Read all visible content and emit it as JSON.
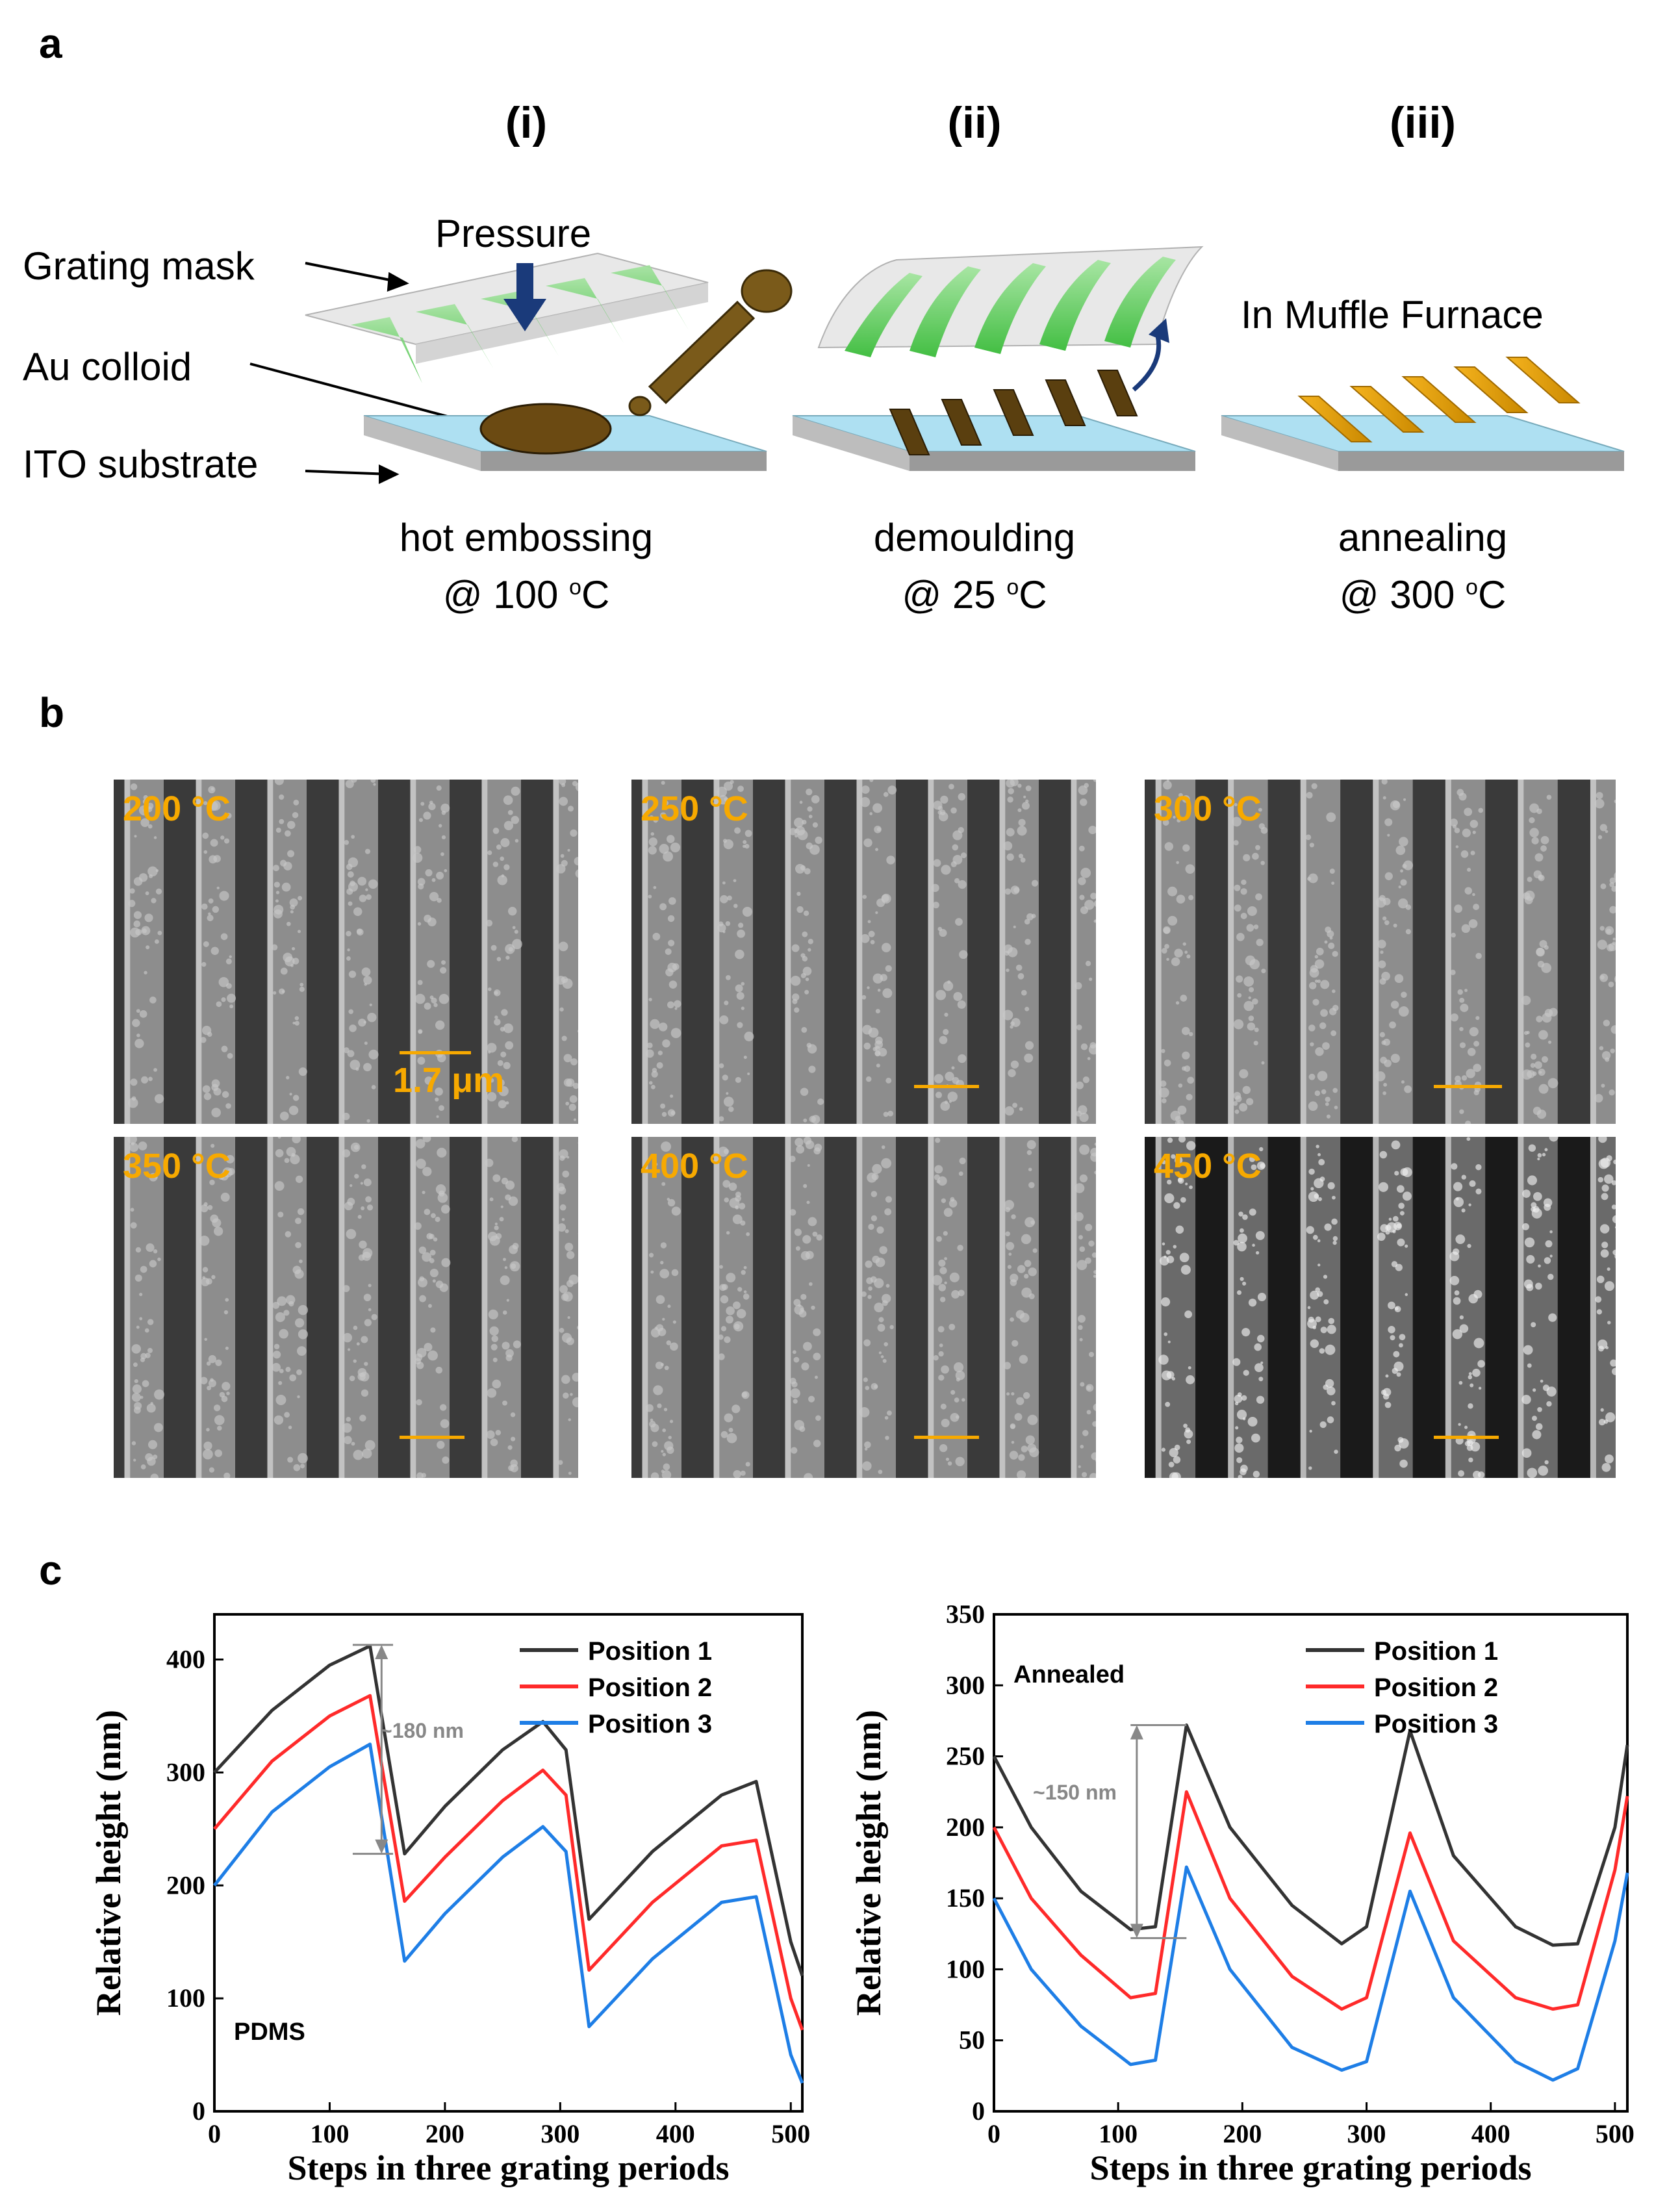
{
  "panels": {
    "a": {
      "letter": "a",
      "steps": [
        {
          "title": "(i)",
          "caption": "hot embossing",
          "temp": "@ 100",
          "unit_sup": "o",
          "unit": "C"
        },
        {
          "title": "(ii)",
          "caption": "demoulding",
          "temp": "@ 25",
          "unit_sup": "o",
          "unit": "C"
        },
        {
          "title": "(iii)",
          "caption": "annealing",
          "temp": "@ 300",
          "unit_sup": "o",
          "unit": "C"
        }
      ],
      "labels": {
        "grating_mask": "Grating mask",
        "au_colloid": "Au colloid",
        "ito_substrate": "ITO substrate",
        "pressure": "Pressure",
        "muffle": "In Muffle Furnace"
      }
    },
    "b": {
      "letter": "b",
      "images": [
        {
          "label": "200 °C"
        },
        {
          "label": "250 °C"
        },
        {
          "label": "300 °C"
        },
        {
          "label": "350 °C"
        },
        {
          "label": "400 °C"
        },
        {
          "label": "450 °C"
        }
      ],
      "scale_bar_text": "1.7 μm"
    },
    "c": {
      "letter": "c"
    }
  },
  "chart_data": [
    {
      "type": "line",
      "xlabel": "Steps in three grating periods",
      "ylabel": "Relative height (nm)",
      "xlim": [
        0,
        510
      ],
      "ylim": [
        0,
        440
      ],
      "xticks": [
        0,
        100,
        200,
        300,
        400,
        500
      ],
      "yticks": [
        0,
        100,
        200,
        300,
        400
      ],
      "annotation_inside": "PDMS",
      "measure_label": "~180 nm",
      "legend_position": "top-right",
      "colors": [
        "#333333",
        "#ff2a2a",
        "#1e7ee6"
      ],
      "series": [
        {
          "name": "Position 1",
          "x": [
            0,
            50,
            100,
            135,
            165,
            200,
            250,
            285,
            305,
            325,
            380,
            440,
            470,
            500,
            510
          ],
          "y": [
            300,
            355,
            395,
            412,
            228,
            270,
            320,
            345,
            320,
            170,
            230,
            280,
            292,
            150,
            120
          ]
        },
        {
          "name": "Position 2",
          "x": [
            0,
            50,
            100,
            135,
            165,
            200,
            250,
            285,
            305,
            325,
            380,
            440,
            470,
            500,
            510
          ],
          "y": [
            250,
            310,
            350,
            368,
            186,
            225,
            275,
            302,
            280,
            125,
            185,
            235,
            240,
            100,
            72
          ]
        },
        {
          "name": "Position 3",
          "x": [
            0,
            50,
            100,
            135,
            165,
            200,
            250,
            285,
            305,
            325,
            380,
            440,
            470,
            500,
            510
          ],
          "y": [
            200,
            265,
            305,
            325,
            133,
            175,
            225,
            252,
            230,
            75,
            135,
            185,
            190,
            50,
            25
          ]
        }
      ]
    },
    {
      "type": "line",
      "xlabel": "Steps in three grating periods",
      "ylabel": "Relative height (nm)",
      "xlim": [
        0,
        510
      ],
      "ylim": [
        0,
        350
      ],
      "xticks": [
        0,
        100,
        200,
        300,
        400,
        500
      ],
      "yticks": [
        0,
        50,
        100,
        150,
        200,
        250,
        300,
        350
      ],
      "annotation_inside": "Annealed",
      "measure_label": "~150 nm",
      "legend_position": "top-right",
      "colors": [
        "#333333",
        "#ff2a2a",
        "#1e7ee6"
      ],
      "series": [
        {
          "name": "Position 1",
          "x": [
            0,
            30,
            70,
            110,
            130,
            155,
            190,
            240,
            280,
            300,
            335,
            370,
            420,
            450,
            470,
            500,
            510
          ],
          "y": [
            250,
            200,
            155,
            128,
            130,
            272,
            200,
            145,
            118,
            130,
            268,
            180,
            130,
            117,
            118,
            200,
            258
          ]
        },
        {
          "name": "Position 2",
          "x": [
            0,
            30,
            70,
            110,
            130,
            155,
            190,
            240,
            280,
            300,
            335,
            370,
            420,
            450,
            470,
            500,
            510
          ],
          "y": [
            200,
            150,
            110,
            80,
            83,
            225,
            150,
            95,
            72,
            80,
            196,
            120,
            80,
            72,
            75,
            170,
            222
          ]
        },
        {
          "name": "Position 3",
          "x": [
            0,
            30,
            70,
            110,
            130,
            155,
            190,
            240,
            280,
            300,
            335,
            370,
            420,
            450,
            470,
            500,
            510
          ],
          "y": [
            150,
            100,
            60,
            33,
            36,
            172,
            100,
            45,
            29,
            35,
            155,
            80,
            35,
            22,
            30,
            120,
            168
          ]
        }
      ]
    }
  ]
}
